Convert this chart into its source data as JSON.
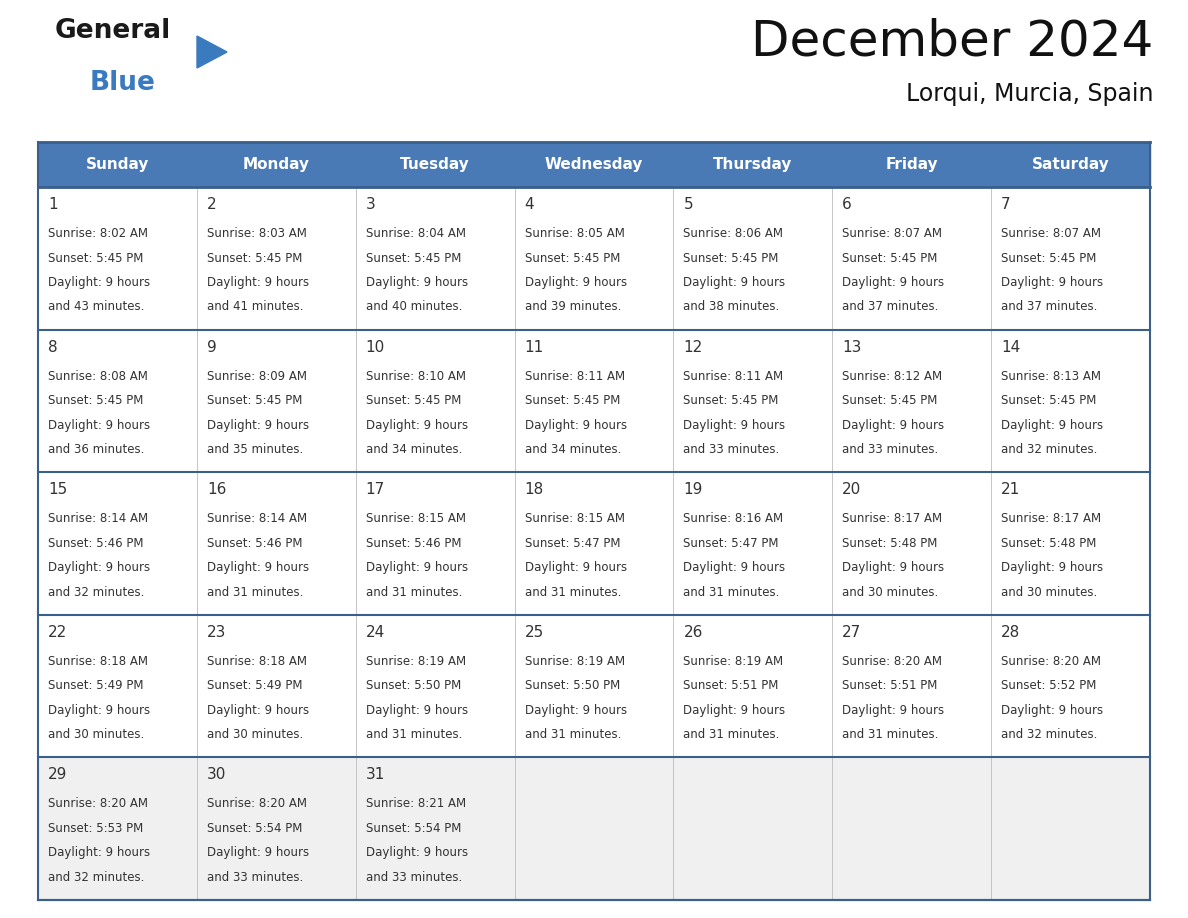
{
  "title": "December 2024",
  "subtitle": "Lorqui, Murcia, Spain",
  "header_color": "#4a7ab5",
  "header_text_color": "#ffffff",
  "cell_bg_color": "#ffffff",
  "last_row_bg_color": "#f0f0f0",
  "border_color": "#3a5f8a",
  "grid_line_color": "#bbbbbb",
  "text_color": "#333333",
  "day_names": [
    "Sunday",
    "Monday",
    "Tuesday",
    "Wednesday",
    "Thursday",
    "Friday",
    "Saturday"
  ],
  "days": [
    {
      "day": 1,
      "col": 0,
      "row": 0,
      "sunrise": "8:02 AM",
      "sunset": "5:45 PM",
      "daylight_hours": 9,
      "daylight_minutes": 43
    },
    {
      "day": 2,
      "col": 1,
      "row": 0,
      "sunrise": "8:03 AM",
      "sunset": "5:45 PM",
      "daylight_hours": 9,
      "daylight_minutes": 41
    },
    {
      "day": 3,
      "col": 2,
      "row": 0,
      "sunrise": "8:04 AM",
      "sunset": "5:45 PM",
      "daylight_hours": 9,
      "daylight_minutes": 40
    },
    {
      "day": 4,
      "col": 3,
      "row": 0,
      "sunrise": "8:05 AM",
      "sunset": "5:45 PM",
      "daylight_hours": 9,
      "daylight_minutes": 39
    },
    {
      "day": 5,
      "col": 4,
      "row": 0,
      "sunrise": "8:06 AM",
      "sunset": "5:45 PM",
      "daylight_hours": 9,
      "daylight_minutes": 38
    },
    {
      "day": 6,
      "col": 5,
      "row": 0,
      "sunrise": "8:07 AM",
      "sunset": "5:45 PM",
      "daylight_hours": 9,
      "daylight_minutes": 37
    },
    {
      "day": 7,
      "col": 6,
      "row": 0,
      "sunrise": "8:07 AM",
      "sunset": "5:45 PM",
      "daylight_hours": 9,
      "daylight_minutes": 37
    },
    {
      "day": 8,
      "col": 0,
      "row": 1,
      "sunrise": "8:08 AM",
      "sunset": "5:45 PM",
      "daylight_hours": 9,
      "daylight_minutes": 36
    },
    {
      "day": 9,
      "col": 1,
      "row": 1,
      "sunrise": "8:09 AM",
      "sunset": "5:45 PM",
      "daylight_hours": 9,
      "daylight_minutes": 35
    },
    {
      "day": 10,
      "col": 2,
      "row": 1,
      "sunrise": "8:10 AM",
      "sunset": "5:45 PM",
      "daylight_hours": 9,
      "daylight_minutes": 34
    },
    {
      "day": 11,
      "col": 3,
      "row": 1,
      "sunrise": "8:11 AM",
      "sunset": "5:45 PM",
      "daylight_hours": 9,
      "daylight_minutes": 34
    },
    {
      "day": 12,
      "col": 4,
      "row": 1,
      "sunrise": "8:11 AM",
      "sunset": "5:45 PM",
      "daylight_hours": 9,
      "daylight_minutes": 33
    },
    {
      "day": 13,
      "col": 5,
      "row": 1,
      "sunrise": "8:12 AM",
      "sunset": "5:45 PM",
      "daylight_hours": 9,
      "daylight_minutes": 33
    },
    {
      "day": 14,
      "col": 6,
      "row": 1,
      "sunrise": "8:13 AM",
      "sunset": "5:45 PM",
      "daylight_hours": 9,
      "daylight_minutes": 32
    },
    {
      "day": 15,
      "col": 0,
      "row": 2,
      "sunrise": "8:14 AM",
      "sunset": "5:46 PM",
      "daylight_hours": 9,
      "daylight_minutes": 32
    },
    {
      "day": 16,
      "col": 1,
      "row": 2,
      "sunrise": "8:14 AM",
      "sunset": "5:46 PM",
      "daylight_hours": 9,
      "daylight_minutes": 31
    },
    {
      "day": 17,
      "col": 2,
      "row": 2,
      "sunrise": "8:15 AM",
      "sunset": "5:46 PM",
      "daylight_hours": 9,
      "daylight_minutes": 31
    },
    {
      "day": 18,
      "col": 3,
      "row": 2,
      "sunrise": "8:15 AM",
      "sunset": "5:47 PM",
      "daylight_hours": 9,
      "daylight_minutes": 31
    },
    {
      "day": 19,
      "col": 4,
      "row": 2,
      "sunrise": "8:16 AM",
      "sunset": "5:47 PM",
      "daylight_hours": 9,
      "daylight_minutes": 31
    },
    {
      "day": 20,
      "col": 5,
      "row": 2,
      "sunrise": "8:17 AM",
      "sunset": "5:48 PM",
      "daylight_hours": 9,
      "daylight_minutes": 30
    },
    {
      "day": 21,
      "col": 6,
      "row": 2,
      "sunrise": "8:17 AM",
      "sunset": "5:48 PM",
      "daylight_hours": 9,
      "daylight_minutes": 30
    },
    {
      "day": 22,
      "col": 0,
      "row": 3,
      "sunrise": "8:18 AM",
      "sunset": "5:49 PM",
      "daylight_hours": 9,
      "daylight_minutes": 30
    },
    {
      "day": 23,
      "col": 1,
      "row": 3,
      "sunrise": "8:18 AM",
      "sunset": "5:49 PM",
      "daylight_hours": 9,
      "daylight_minutes": 30
    },
    {
      "day": 24,
      "col": 2,
      "row": 3,
      "sunrise": "8:19 AM",
      "sunset": "5:50 PM",
      "daylight_hours": 9,
      "daylight_minutes": 31
    },
    {
      "day": 25,
      "col": 3,
      "row": 3,
      "sunrise": "8:19 AM",
      "sunset": "5:50 PM",
      "daylight_hours": 9,
      "daylight_minutes": 31
    },
    {
      "day": 26,
      "col": 4,
      "row": 3,
      "sunrise": "8:19 AM",
      "sunset": "5:51 PM",
      "daylight_hours": 9,
      "daylight_minutes": 31
    },
    {
      "day": 27,
      "col": 5,
      "row": 3,
      "sunrise": "8:20 AM",
      "sunset": "5:51 PM",
      "daylight_hours": 9,
      "daylight_minutes": 31
    },
    {
      "day": 28,
      "col": 6,
      "row": 3,
      "sunrise": "8:20 AM",
      "sunset": "5:52 PM",
      "daylight_hours": 9,
      "daylight_minutes": 32
    },
    {
      "day": 29,
      "col": 0,
      "row": 4,
      "sunrise": "8:20 AM",
      "sunset": "5:53 PM",
      "daylight_hours": 9,
      "daylight_minutes": 32
    },
    {
      "day": 30,
      "col": 1,
      "row": 4,
      "sunrise": "8:20 AM",
      "sunset": "5:54 PM",
      "daylight_hours": 9,
      "daylight_minutes": 33
    },
    {
      "day": 31,
      "col": 2,
      "row": 4,
      "sunrise": "8:21 AM",
      "sunset": "5:54 PM",
      "daylight_hours": 9,
      "daylight_minutes": 33
    }
  ],
  "logo_color_general": "#1a1a1a",
  "logo_color_blue": "#3a7abf",
  "logo_triangle_color": "#3a7abf",
  "fig_width": 11.88,
  "fig_height": 9.18,
  "dpi": 100
}
